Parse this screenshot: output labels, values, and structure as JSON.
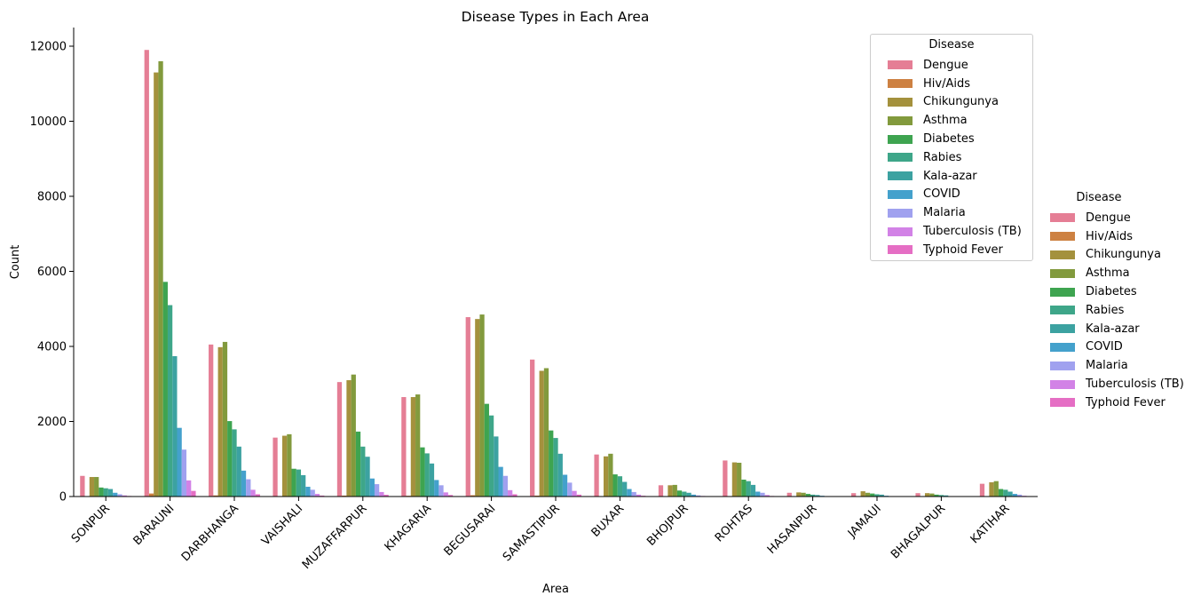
{
  "chart_data": {
    "type": "bar",
    "title": "Disease Types in Each Area",
    "xlabel": "Area",
    "ylabel": "Count",
    "ylim": [
      0,
      12400
    ],
    "yticks": [
      0,
      2000,
      4000,
      6000,
      8000,
      10000,
      12000
    ],
    "categories": [
      "SONPUR",
      "BARAUNI",
      "DARBHANGA",
      "VAISHALI",
      "MUZAFFARPUR",
      "KHAGARIA",
      "BEGUSARAI",
      "SAMASTIPUR",
      "BUXAR",
      "BHOJPUR",
      "ROHTAS",
      "HASANPUR",
      "JAMAUI",
      "BHAGALPUR",
      "KATIHAR"
    ],
    "legend_title": "Disease",
    "legend_placement": "upper-right inside and right outside",
    "series": [
      {
        "name": "Dengue",
        "color": "#e57e95",
        "values": [
          550,
          11900,
          4050,
          1570,
          3050,
          2650,
          4780,
          3650,
          1120,
          300,
          960,
          100,
          90,
          90,
          340
        ]
      },
      {
        "name": "Hiv/Aids",
        "color": "#cd8142",
        "values": [
          8,
          80,
          30,
          12,
          25,
          20,
          35,
          25,
          8,
          3,
          8,
          1,
          1,
          1,
          3
        ]
      },
      {
        "name": "Chikungunya",
        "color": "#a4913d",
        "values": [
          520,
          11300,
          3980,
          1620,
          3100,
          2650,
          4730,
          3350,
          1070,
          300,
          910,
          110,
          140,
          90,
          380
        ]
      },
      {
        "name": "Asthma",
        "color": "#829a3d",
        "values": [
          520,
          11600,
          4120,
          1660,
          3250,
          2720,
          4850,
          3420,
          1140,
          310,
          900,
          100,
          100,
          80,
          410
        ]
      },
      {
        "name": "Diabetes",
        "color": "#3ea450",
        "values": [
          240,
          5720,
          2010,
          740,
          1730,
          1310,
          2470,
          1760,
          590,
          160,
          450,
          70,
          80,
          50,
          200
        ]
      },
      {
        "name": "Rabies",
        "color": "#3ea689",
        "values": [
          220,
          5100,
          1790,
          720,
          1330,
          1150,
          2160,
          1560,
          540,
          130,
          410,
          50,
          60,
          40,
          180
        ]
      },
      {
        "name": "Kala-azar",
        "color": "#3ca2a1",
        "values": [
          200,
          3740,
          1330,
          570,
          1060,
          880,
          1600,
          1140,
          390,
          100,
          310,
          40,
          50,
          30,
          130
        ]
      },
      {
        "name": "COVID",
        "color": "#44a1cc",
        "values": [
          100,
          1830,
          690,
          260,
          480,
          440,
          790,
          580,
          200,
          50,
          130,
          20,
          20,
          10,
          70
        ]
      },
      {
        "name": "Malaria",
        "color": "#a0a1ef",
        "values": [
          60,
          1250,
          460,
          180,
          330,
          300,
          550,
          370,
          120,
          30,
          100,
          10,
          10,
          5,
          50
        ]
      },
      {
        "name": "Tuberculosis (TB)",
        "color": "#d282e6",
        "values": [
          30,
          430,
          180,
          70,
          120,
          110,
          170,
          150,
          50,
          15,
          40,
          5,
          5,
          3,
          20
        ]
      },
      {
        "name": "Typhoid Fever",
        "color": "#e56ec4",
        "values": [
          15,
          150,
          60,
          25,
          45,
          40,
          60,
          50,
          20,
          8,
          15,
          3,
          3,
          2,
          10
        ]
      }
    ]
  }
}
